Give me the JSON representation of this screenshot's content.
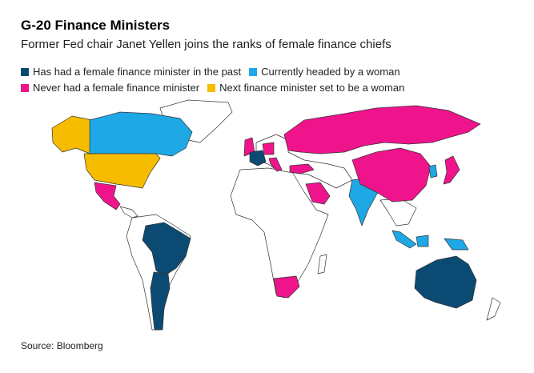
{
  "header": {
    "title": "G-20 Finance Ministers",
    "subtitle": "Former Fed chair Janet Yellen joins the ranks of female finance chiefs"
  },
  "legend": [
    {
      "label": "Has had a female finance minister in the past",
      "color": "#0b4a72"
    },
    {
      "label": "Currently headed by a woman",
      "color": "#1ea8e6"
    },
    {
      "label": "Never had a female finance minister",
      "color": "#f0148c"
    },
    {
      "label": "Next finance minister set to be a woman",
      "color": "#f6bd00"
    }
  ],
  "source": "Source: Bloomberg"
}
